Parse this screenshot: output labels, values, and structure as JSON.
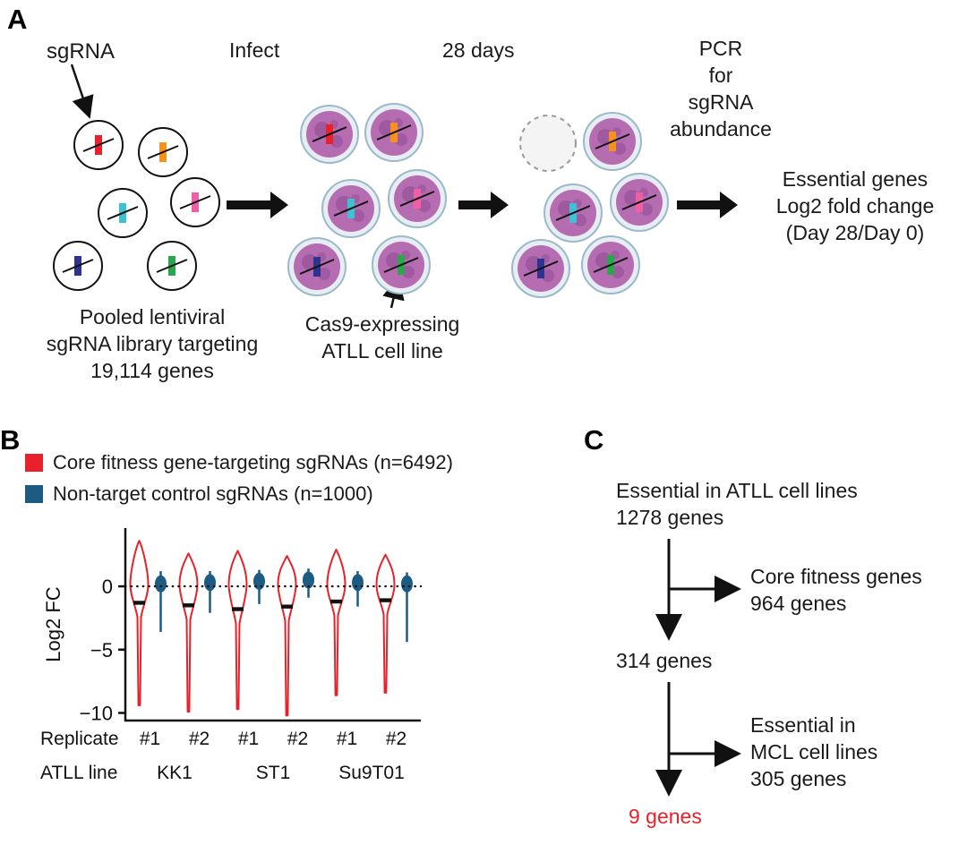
{
  "panels": {
    "a": "A",
    "b": "B",
    "c": "C"
  },
  "panelA": {
    "sgrna_pointer": "sgRNA",
    "step_infect": "Infect",
    "step_days": "28 days",
    "step_pcr": "PCR\nfor\nsgRNA\nabundance",
    "result_text": "Essential genes\nLog2 fold change\n(Day 28/Day 0)",
    "library_caption": "Pooled lentiviral\nsgRNA library targeting\n19,114 genes",
    "cell_caption": "Cas9-expressing\nATLL cell line",
    "sgrna_colors": [
      "#e8212a",
      "#f5921e",
      "#3fc1d4",
      "#ee5fa4",
      "#2e3390",
      "#2aa64d"
    ],
    "cell_colors": {
      "halo_fill": "#e6edf3",
      "halo_stroke": "#9cb9cb",
      "body": "#b56cb1",
      "blotch": "#8a458d"
    }
  },
  "panelB": {
    "legend": [
      {
        "label": "Core fitness gene-targeting sgRNAs (n=6492)",
        "color": "#e8212a"
      },
      {
        "label": "Non-target control sgRNAs (n=1000)",
        "color": "#1d5b83"
      }
    ]
  },
  "chart_data": {
    "type": "violin",
    "title": "",
    "ylabel": "Log2 FC",
    "ylim": [
      -10.6,
      4.6
    ],
    "yticks": [
      0,
      -5,
      -10
    ],
    "grid": false,
    "series": [
      {
        "name": "Core fitness gene-targeting sgRNAs (n=6492)",
        "color": "#e8212a"
      },
      {
        "name": "Non-target control sgRNAs (n=1000)",
        "color": "#1d5b83"
      }
    ],
    "x_rows": {
      "replicate_label": "Replicate",
      "line_label": "ATLL line",
      "lines": [
        "KK1",
        "ST1",
        "Su9T01"
      ]
    },
    "groups": [
      {
        "replicate": "#1",
        "line": "KK1",
        "core": {
          "max": 3.6,
          "min": -9.4,
          "median": -1.3
        },
        "control": {
          "max": 1.2,
          "min": -3.6,
          "center": 0.2
        }
      },
      {
        "replicate": "#2",
        "line": "KK1",
        "core": {
          "max": 2.6,
          "min": -9.9,
          "median": -1.5
        },
        "control": {
          "max": 1.2,
          "min": -2.1,
          "center": 0.3
        }
      },
      {
        "replicate": "#1",
        "line": "ST1",
        "core": {
          "max": 2.8,
          "min": -9.7,
          "median": -1.8
        },
        "control": {
          "max": 1.3,
          "min": -1.4,
          "center": 0.4
        }
      },
      {
        "replicate": "#2",
        "line": "ST1",
        "core": {
          "max": 2.4,
          "min": -10.2,
          "median": -1.6
        },
        "control": {
          "max": 1.4,
          "min": -0.9,
          "center": 0.5
        }
      },
      {
        "replicate": "#1",
        "line": "Su9T01",
        "core": {
          "max": 2.9,
          "min": -8.6,
          "median": -1.2
        },
        "control": {
          "max": 1.2,
          "min": -1.6,
          "center": 0.3
        }
      },
      {
        "replicate": "#2",
        "line": "Su9T01",
        "core": {
          "max": 2.5,
          "min": -8.4,
          "median": -1.1
        },
        "control": {
          "max": 1.1,
          "min": -4.4,
          "center": 0.2
        }
      }
    ]
  },
  "panelC": {
    "node_top": "Essential in ATLL cell lines\n1278 genes",
    "branch_core": "Core fitness genes\n964 genes",
    "node_mid": "314 genes",
    "branch_mcl": "Essential in\nMCL cell lines\n305 genes",
    "node_final": "9 genes",
    "final_color": "#e8212a"
  }
}
